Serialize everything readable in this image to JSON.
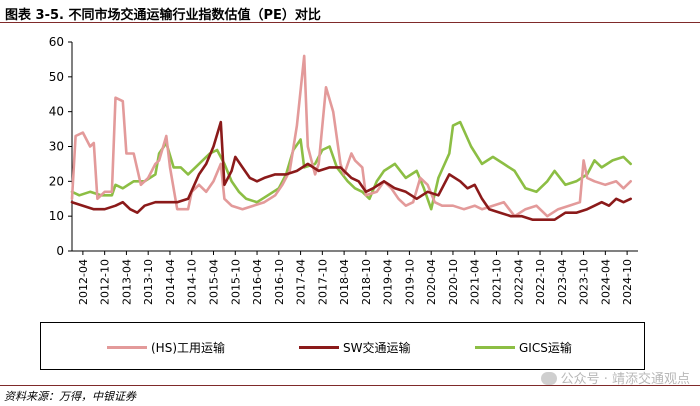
{
  "header": {
    "title": "图表 3-5. 不同市场交通运输行业指数估值（PE）对比"
  },
  "footer": {
    "source": "资料来源：万得，中银证券",
    "watermark": "公众号 · 靖添交通观点"
  },
  "chart_data": {
    "type": "line",
    "title": "",
    "xlabel": "",
    "ylabel": "",
    "ylim": [
      0,
      60
    ],
    "yticks": [
      0,
      10,
      20,
      30,
      40,
      50,
      60
    ],
    "xlim": [
      "2012-01",
      "2025-01"
    ],
    "xticks": [
      "2012-04",
      "2012-10",
      "2013-04",
      "2013-10",
      "2014-04",
      "2014-10",
      "2015-04",
      "2015-10",
      "2016-04",
      "2016-10",
      "2017-04",
      "2017-10",
      "2018-04",
      "2018-10",
      "2019-04",
      "2019-10",
      "2020-04",
      "2020-10",
      "2021-04",
      "2021-10",
      "2022-04",
      "2022-10",
      "2023-04",
      "2023-10",
      "2024-04",
      "2024-10"
    ],
    "grid": false,
    "legend_position": "bottom",
    "series": [
      {
        "name": "(HS)工用运输",
        "color": "#e39a9a",
        "points": [
          [
            "2012-01",
            15
          ],
          [
            "2012-02",
            33
          ],
          [
            "2012-04",
            34
          ],
          [
            "2012-06",
            30
          ],
          [
            "2012-07",
            31
          ],
          [
            "2012-08",
            15
          ],
          [
            "2012-10",
            17
          ],
          [
            "2012-12",
            17
          ],
          [
            "2013-01",
            44
          ],
          [
            "2013-03",
            43
          ],
          [
            "2013-04",
            28
          ],
          [
            "2013-06",
            28
          ],
          [
            "2013-08",
            19
          ],
          [
            "2013-10",
            21
          ],
          [
            "2013-12",
            25
          ],
          [
            "2014-01",
            26
          ],
          [
            "2014-03",
            33
          ],
          [
            "2014-04",
            24
          ],
          [
            "2014-06",
            12
          ],
          [
            "2014-09",
            12
          ],
          [
            "2014-10",
            17
          ],
          [
            "2014-12",
            19
          ],
          [
            "2015-02",
            17
          ],
          [
            "2015-04",
            20
          ],
          [
            "2015-06",
            25
          ],
          [
            "2015-07",
            15
          ],
          [
            "2015-09",
            13
          ],
          [
            "2015-12",
            12
          ],
          [
            "2016-03",
            13
          ],
          [
            "2016-06",
            14
          ],
          [
            "2016-09",
            16
          ],
          [
            "2016-11",
            19
          ],
          [
            "2017-01",
            23
          ],
          [
            "2017-03",
            36
          ],
          [
            "2017-05",
            56
          ],
          [
            "2017-06",
            30
          ],
          [
            "2017-08",
            22
          ],
          [
            "2017-09",
            25
          ],
          [
            "2017-11",
            47
          ],
          [
            "2018-01",
            40
          ],
          [
            "2018-03",
            25
          ],
          [
            "2018-04",
            22
          ],
          [
            "2018-06",
            28
          ],
          [
            "2018-07",
            26
          ],
          [
            "2018-09",
            24
          ],
          [
            "2018-10",
            16
          ],
          [
            "2019-01",
            17
          ],
          [
            "2019-03",
            20
          ],
          [
            "2019-05",
            18
          ],
          [
            "2019-07",
            15
          ],
          [
            "2019-09",
            13
          ],
          [
            "2019-11",
            14
          ],
          [
            "2020-01",
            21
          ],
          [
            "2020-03",
            19
          ],
          [
            "2020-05",
            14
          ],
          [
            "2020-07",
            13
          ],
          [
            "2020-09",
            13
          ],
          [
            "2020-10",
            13
          ],
          [
            "2021-01",
            12
          ],
          [
            "2021-04",
            13
          ],
          [
            "2021-06",
            12
          ],
          [
            "2021-09",
            13
          ],
          [
            "2021-12",
            14
          ],
          [
            "2022-03",
            10
          ],
          [
            "2022-06",
            12
          ],
          [
            "2022-09",
            13
          ],
          [
            "2022-12",
            10
          ],
          [
            "2023-03",
            12
          ],
          [
            "2023-06",
            13
          ],
          [
            "2023-09",
            14
          ],
          [
            "2023-10",
            26
          ],
          [
            "2023-11",
            21
          ],
          [
            "2024-01",
            20
          ],
          [
            "2024-04",
            19
          ],
          [
            "2024-07",
            20
          ],
          [
            "2024-09",
            18
          ],
          [
            "2024-11",
            20
          ]
        ]
      },
      {
        "name": "SW交通运输",
        "color": "#8b1a1a",
        "points": [
          [
            "2012-01",
            14
          ],
          [
            "2012-04",
            13
          ],
          [
            "2012-07",
            12
          ],
          [
            "2012-10",
            12
          ],
          [
            "2013-01",
            13
          ],
          [
            "2013-03",
            14
          ],
          [
            "2013-05",
            12
          ],
          [
            "2013-07",
            11
          ],
          [
            "2013-09",
            13
          ],
          [
            "2013-12",
            14
          ],
          [
            "2014-03",
            14
          ],
          [
            "2014-06",
            14
          ],
          [
            "2014-09",
            15
          ],
          [
            "2014-12",
            22
          ],
          [
            "2015-02",
            25
          ],
          [
            "2015-04",
            30
          ],
          [
            "2015-06",
            37
          ],
          [
            "2015-07",
            19
          ],
          [
            "2015-09",
            23
          ],
          [
            "2015-10",
            27
          ],
          [
            "2015-12",
            24
          ],
          [
            "2016-02",
            21
          ],
          [
            "2016-04",
            20
          ],
          [
            "2016-06",
            21
          ],
          [
            "2016-09",
            22
          ],
          [
            "2016-12",
            22
          ],
          [
            "2017-03",
            23
          ],
          [
            "2017-06",
            25
          ],
          [
            "2017-09",
            23
          ],
          [
            "2017-12",
            24
          ],
          [
            "2018-03",
            24
          ],
          [
            "2018-06",
            21
          ],
          [
            "2018-08",
            20
          ],
          [
            "2018-10",
            17
          ],
          [
            "2018-12",
            18
          ],
          [
            "2019-03",
            20
          ],
          [
            "2019-06",
            18
          ],
          [
            "2019-09",
            17
          ],
          [
            "2019-12",
            15
          ],
          [
            "2020-03",
            17
          ],
          [
            "2020-06",
            16
          ],
          [
            "2020-09",
            22
          ],
          [
            "2020-12",
            20
          ],
          [
            "2021-02",
            18
          ],
          [
            "2021-04",
            19
          ],
          [
            "2021-06",
            15
          ],
          [
            "2021-08",
            12
          ],
          [
            "2021-11",
            11
          ],
          [
            "2022-02",
            10
          ],
          [
            "2022-05",
            10
          ],
          [
            "2022-08",
            9
          ],
          [
            "2022-11",
            9
          ],
          [
            "2023-02",
            9
          ],
          [
            "2023-05",
            11
          ],
          [
            "2023-08",
            11
          ],
          [
            "2023-11",
            12
          ],
          [
            "2024-01",
            13
          ],
          [
            "2024-03",
            14
          ],
          [
            "2024-05",
            13
          ],
          [
            "2024-07",
            15
          ],
          [
            "2024-09",
            14
          ],
          [
            "2024-11",
            15
          ]
        ]
      },
      {
        "name": "GICS运输",
        "color": "#8cbe44",
        "points": [
          [
            "2012-01",
            17
          ],
          [
            "2012-03",
            16
          ],
          [
            "2012-06",
            17
          ],
          [
            "2012-09",
            16
          ],
          [
            "2012-12",
            16
          ],
          [
            "2013-01",
            19
          ],
          [
            "2013-03",
            18
          ],
          [
            "2013-06",
            20
          ],
          [
            "2013-09",
            20
          ],
          [
            "2013-12",
            22
          ],
          [
            "2014-01",
            28
          ],
          [
            "2014-03",
            31
          ],
          [
            "2014-05",
            24
          ],
          [
            "2014-07",
            24
          ],
          [
            "2014-09",
            22
          ],
          [
            "2014-11",
            24
          ],
          [
            "2015-01",
            26
          ],
          [
            "2015-03",
            28
          ],
          [
            "2015-05",
            29
          ],
          [
            "2015-07",
            25
          ],
          [
            "2015-09",
            20
          ],
          [
            "2015-11",
            17
          ],
          [
            "2016-01",
            15
          ],
          [
            "2016-04",
            14
          ],
          [
            "2016-07",
            16
          ],
          [
            "2016-10",
            18
          ],
          [
            "2016-12",
            22
          ],
          [
            "2017-02",
            29
          ],
          [
            "2017-04",
            32
          ],
          [
            "2017-05",
            24
          ],
          [
            "2017-08",
            25
          ],
          [
            "2017-10",
            29
          ],
          [
            "2017-12",
            30
          ],
          [
            "2018-02",
            24
          ],
          [
            "2018-05",
            20
          ],
          [
            "2018-07",
            18
          ],
          [
            "2018-09",
            17
          ],
          [
            "2018-11",
            15
          ],
          [
            "2019-01",
            20
          ],
          [
            "2019-03",
            23
          ],
          [
            "2019-06",
            25
          ],
          [
            "2019-09",
            21
          ],
          [
            "2019-12",
            23
          ],
          [
            "2020-02",
            18
          ],
          [
            "2020-04",
            12
          ],
          [
            "2020-06",
            21
          ],
          [
            "2020-09",
            28
          ],
          [
            "2020-10",
            36
          ],
          [
            "2020-12",
            37
          ],
          [
            "2021-03",
            30
          ],
          [
            "2021-06",
            25
          ],
          [
            "2021-09",
            27
          ],
          [
            "2021-12",
            25
          ],
          [
            "2022-03",
            23
          ],
          [
            "2022-06",
            18
          ],
          [
            "2022-09",
            17
          ],
          [
            "2022-12",
            20
          ],
          [
            "2023-02",
            23
          ],
          [
            "2023-05",
            19
          ],
          [
            "2023-08",
            20
          ],
          [
            "2023-11",
            22
          ],
          [
            "2024-01",
            26
          ],
          [
            "2024-03",
            24
          ],
          [
            "2024-06",
            26
          ],
          [
            "2024-09",
            27
          ],
          [
            "2024-11",
            25
          ]
        ]
      }
    ]
  }
}
